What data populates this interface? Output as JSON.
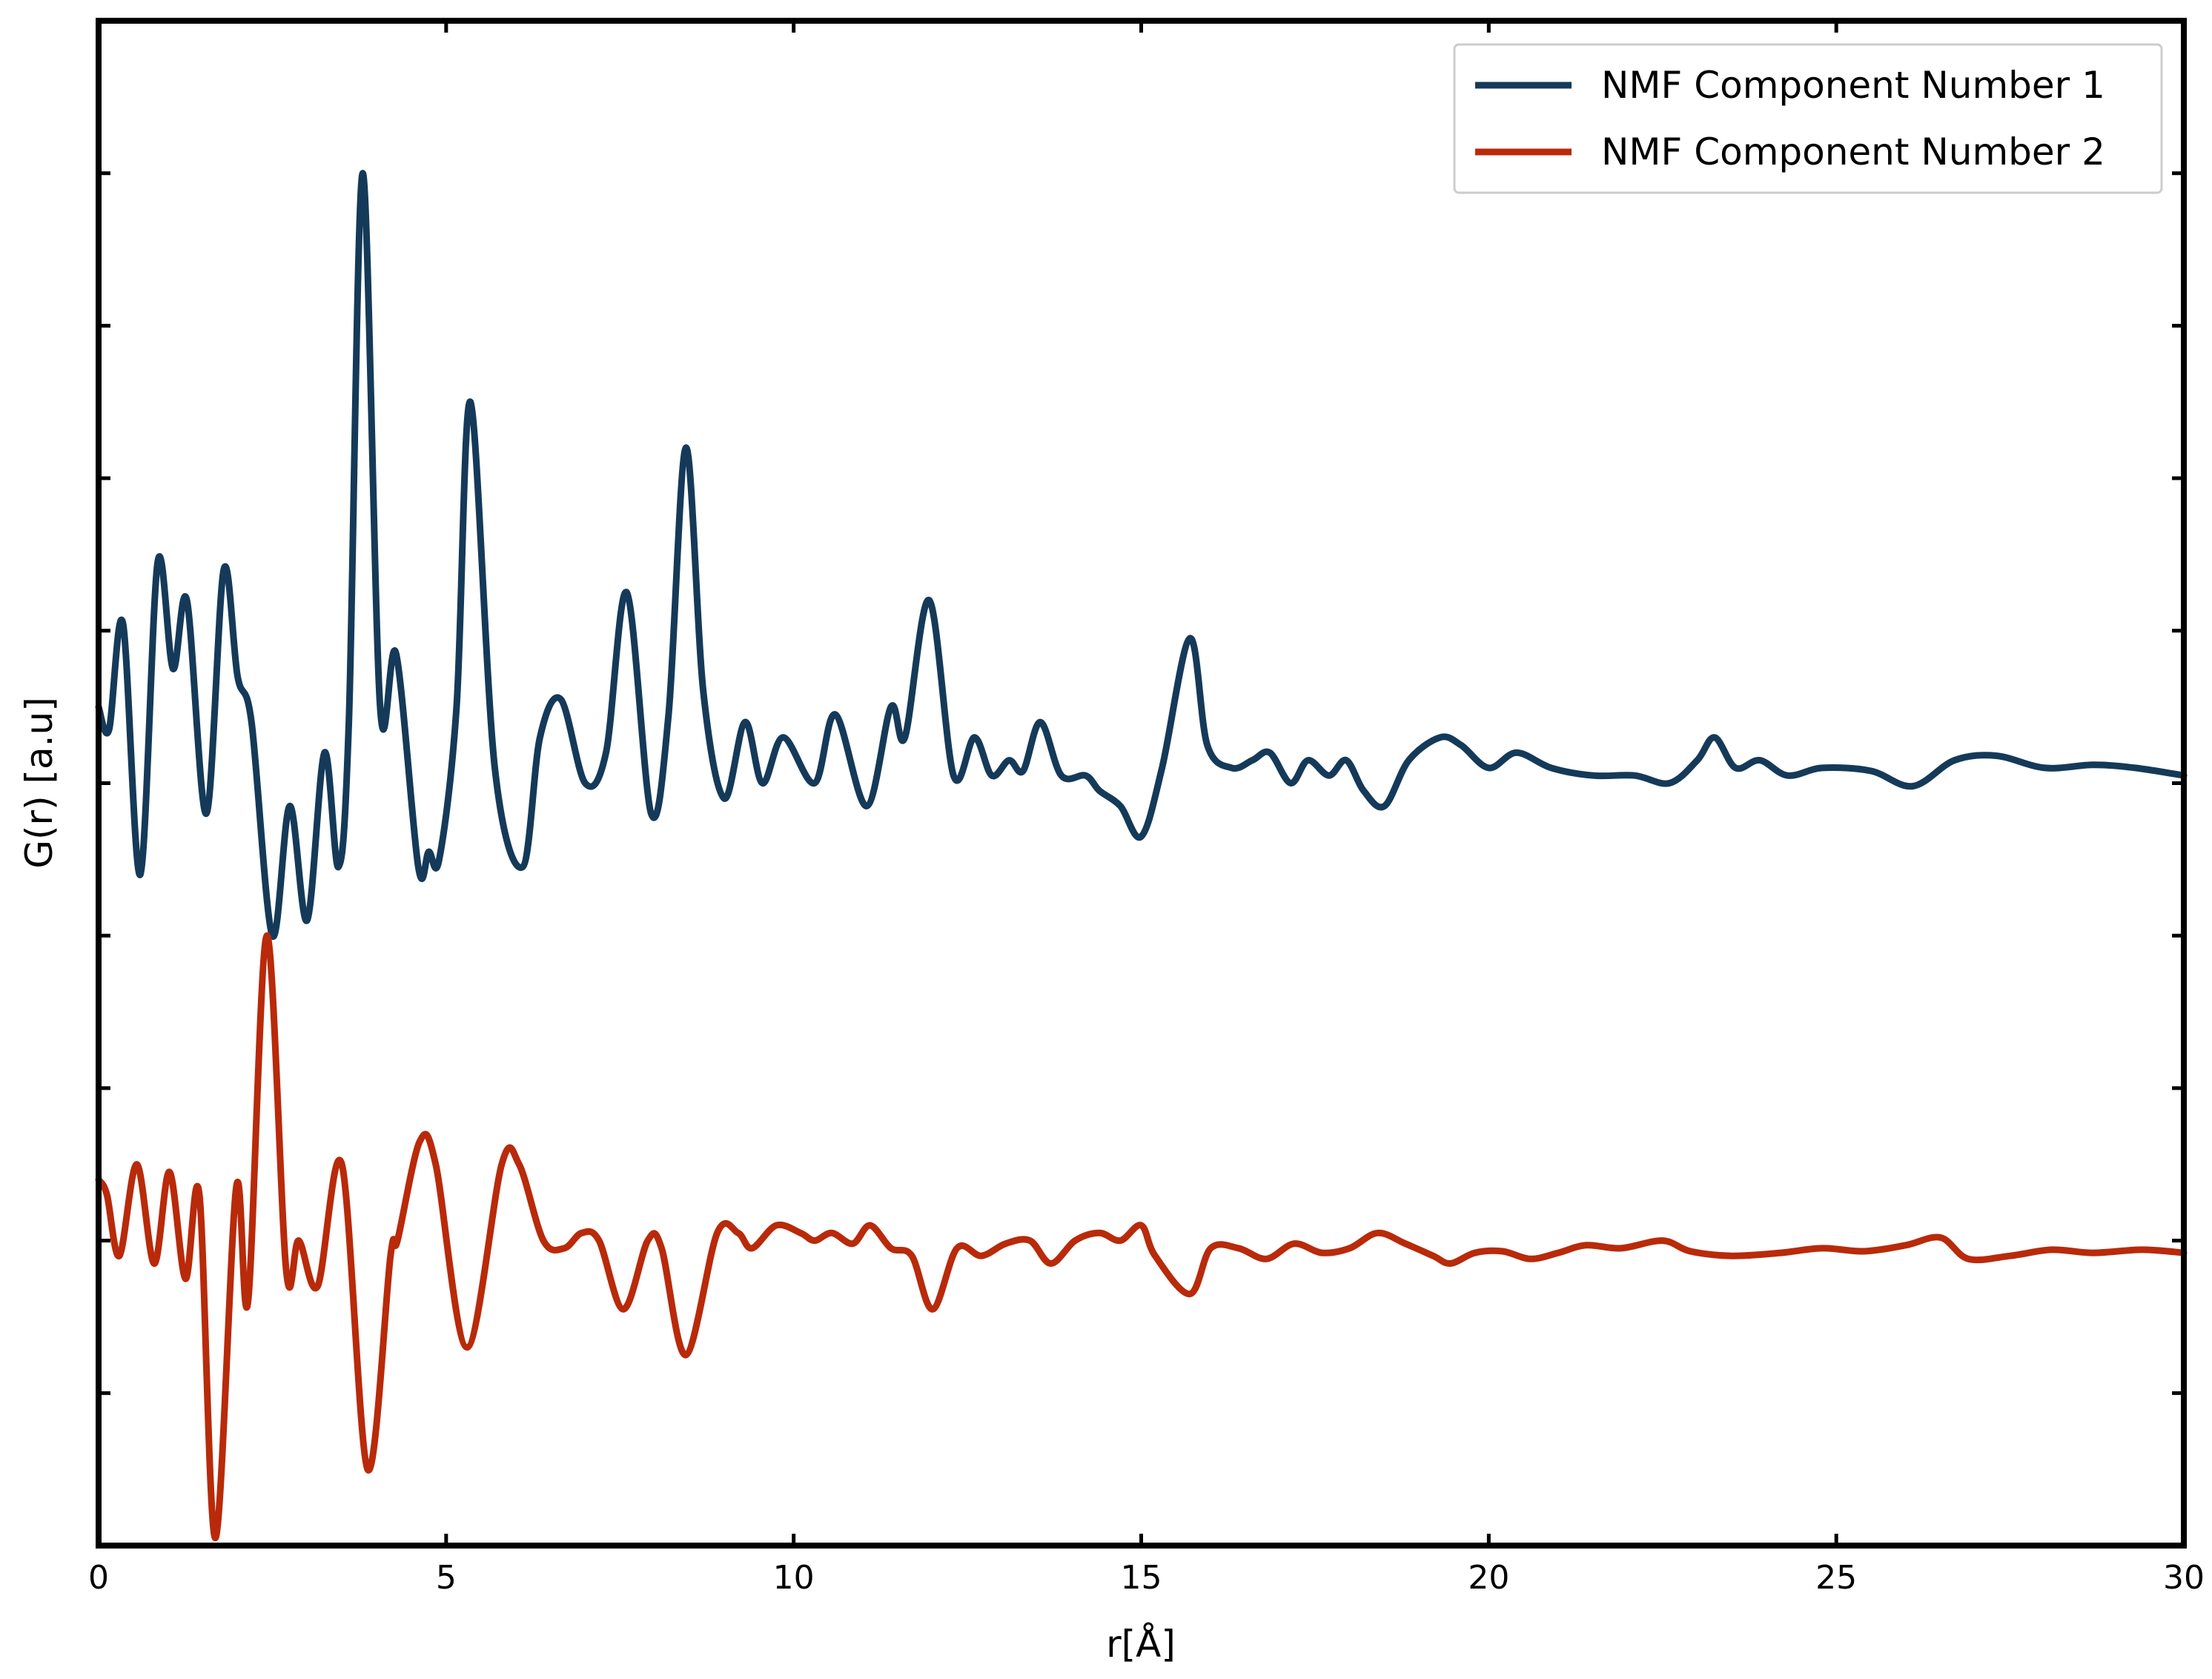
{
  "chart_data": {
    "type": "line",
    "xlabel": "r[Å]",
    "ylabel": "G(r) [a.u]",
    "xlim": [
      0,
      30
    ],
    "ylim": [
      0,
      10
    ],
    "x_ticks": [
      0,
      5,
      10,
      15,
      20,
      25,
      30
    ],
    "y_ticks": [
      1,
      2,
      3,
      4,
      5,
      6,
      7,
      8,
      9
    ],
    "grid": false,
    "legend_position": "top-right",
    "series": [
      {
        "name": "NMF Component Number 1",
        "color": "#153a59",
        "points": [
          [
            0.0,
            5.5
          ],
          [
            0.15,
            5.35
          ],
          [
            0.35,
            6.05
          ],
          [
            0.6,
            4.4
          ],
          [
            0.85,
            6.45
          ],
          [
            1.07,
            5.75
          ],
          [
            1.27,
            6.2
          ],
          [
            1.55,
            4.8
          ],
          [
            1.8,
            6.4
          ],
          [
            2.0,
            5.7
          ],
          [
            2.2,
            5.4
          ],
          [
            2.5,
            4.0
          ],
          [
            2.75,
            4.85
          ],
          [
            3.0,
            4.1
          ],
          [
            3.25,
            5.2
          ],
          [
            3.45,
            4.45
          ],
          [
            3.6,
            5.4
          ],
          [
            3.8,
            9.0
          ],
          [
            4.05,
            5.5
          ],
          [
            4.28,
            5.85
          ],
          [
            4.6,
            4.45
          ],
          [
            4.75,
            4.55
          ],
          [
            4.9,
            4.5
          ],
          [
            5.15,
            5.5
          ],
          [
            5.35,
            7.5
          ],
          [
            5.7,
            5.1
          ],
          [
            6.1,
            4.45
          ],
          [
            6.35,
            5.3
          ],
          [
            6.65,
            5.55
          ],
          [
            7.0,
            5.0
          ],
          [
            7.3,
            5.2
          ],
          [
            7.6,
            6.25
          ],
          [
            7.95,
            4.8
          ],
          [
            8.2,
            5.45
          ],
          [
            8.45,
            7.2
          ],
          [
            8.7,
            5.6
          ],
          [
            9.0,
            4.9
          ],
          [
            9.3,
            5.4
          ],
          [
            9.55,
            5.0
          ],
          [
            9.85,
            5.3
          ],
          [
            10.3,
            5.0
          ],
          [
            10.6,
            5.45
          ],
          [
            11.05,
            4.85
          ],
          [
            11.4,
            5.5
          ],
          [
            11.6,
            5.3
          ],
          [
            11.95,
            6.2
          ],
          [
            12.3,
            5.05
          ],
          [
            12.6,
            5.3
          ],
          [
            12.85,
            5.05
          ],
          [
            13.1,
            5.15
          ],
          [
            13.3,
            5.08
          ],
          [
            13.55,
            5.4
          ],
          [
            13.85,
            5.05
          ],
          [
            14.2,
            5.05
          ],
          [
            14.4,
            4.95
          ],
          [
            14.7,
            4.85
          ],
          [
            15.0,
            4.65
          ],
          [
            15.3,
            5.1
          ],
          [
            15.7,
            5.95
          ],
          [
            15.95,
            5.25
          ],
          [
            16.3,
            5.1
          ],
          [
            16.6,
            5.15
          ],
          [
            16.85,
            5.2
          ],
          [
            17.15,
            5.0
          ],
          [
            17.4,
            5.15
          ],
          [
            17.7,
            5.05
          ],
          [
            17.95,
            5.15
          ],
          [
            18.2,
            4.95
          ],
          [
            18.5,
            4.85
          ],
          [
            18.85,
            5.15
          ],
          [
            19.3,
            5.3
          ],
          [
            19.6,
            5.25
          ],
          [
            20.0,
            5.1
          ],
          [
            20.4,
            5.2
          ],
          [
            20.9,
            5.1
          ],
          [
            21.5,
            5.05
          ],
          [
            22.1,
            5.05
          ],
          [
            22.6,
            5.0
          ],
          [
            23.0,
            5.15
          ],
          [
            23.25,
            5.3
          ],
          [
            23.55,
            5.1
          ],
          [
            23.9,
            5.15
          ],
          [
            24.3,
            5.05
          ],
          [
            24.8,
            5.1
          ],
          [
            25.5,
            5.08
          ],
          [
            26.1,
            4.98
          ],
          [
            26.7,
            5.15
          ],
          [
            27.3,
            5.18
          ],
          [
            28.0,
            5.1
          ],
          [
            28.7,
            5.12
          ],
          [
            29.3,
            5.1
          ],
          [
            30.0,
            5.05
          ]
        ]
      },
      {
        "name": "NMF Component Number 2",
        "color": "#b82a0a",
        "points": [
          [
            0.0,
            2.4
          ],
          [
            0.12,
            2.3
          ],
          [
            0.3,
            1.9
          ],
          [
            0.55,
            2.5
          ],
          [
            0.8,
            1.85
          ],
          [
            1.02,
            2.45
          ],
          [
            1.25,
            1.75
          ],
          [
            1.45,
            2.3
          ],
          [
            1.68,
            0.05
          ],
          [
            1.98,
            2.35
          ],
          [
            2.15,
            1.6
          ],
          [
            2.42,
            4.0
          ],
          [
            2.7,
            1.8
          ],
          [
            2.88,
            2.0
          ],
          [
            3.15,
            1.7
          ],
          [
            3.5,
            2.5
          ],
          [
            3.87,
            0.5
          ],
          [
            4.2,
            1.9
          ],
          [
            4.3,
            2.0
          ],
          [
            4.62,
            2.65
          ],
          [
            4.85,
            2.5
          ],
          [
            5.3,
            1.3
          ],
          [
            5.8,
            2.5
          ],
          [
            6.05,
            2.5
          ],
          [
            6.4,
            2.0
          ],
          [
            6.7,
            1.95
          ],
          [
            6.95,
            2.05
          ],
          [
            7.2,
            2.0
          ],
          [
            7.55,
            1.55
          ],
          [
            7.9,
            2.0
          ],
          [
            8.1,
            1.95
          ],
          [
            8.45,
            1.25
          ],
          [
            8.9,
            2.05
          ],
          [
            9.2,
            2.05
          ],
          [
            9.4,
            1.95
          ],
          [
            9.75,
            2.1
          ],
          [
            10.1,
            2.05
          ],
          [
            10.3,
            2.0
          ],
          [
            10.55,
            2.05
          ],
          [
            10.85,
            1.98
          ],
          [
            11.1,
            2.1
          ],
          [
            11.4,
            1.95
          ],
          [
            11.7,
            1.9
          ],
          [
            12.0,
            1.55
          ],
          [
            12.35,
            1.95
          ],
          [
            12.7,
            1.9
          ],
          [
            13.05,
            1.98
          ],
          [
            13.4,
            2.0
          ],
          [
            13.7,
            1.85
          ],
          [
            14.05,
            2.0
          ],
          [
            14.4,
            2.05
          ],
          [
            14.7,
            2.0
          ],
          [
            15.0,
            2.1
          ],
          [
            15.2,
            1.9
          ],
          [
            15.7,
            1.65
          ],
          [
            16.0,
            1.95
          ],
          [
            16.4,
            1.95
          ],
          [
            16.8,
            1.88
          ],
          [
            17.2,
            1.98
          ],
          [
            17.6,
            1.92
          ],
          [
            18.0,
            1.95
          ],
          [
            18.4,
            2.05
          ],
          [
            18.8,
            1.98
          ],
          [
            19.2,
            1.9
          ],
          [
            19.45,
            1.85
          ],
          [
            19.8,
            1.92
          ],
          [
            20.2,
            1.93
          ],
          [
            20.6,
            1.88
          ],
          [
            21.0,
            1.92
          ],
          [
            21.4,
            1.97
          ],
          [
            21.9,
            1.95
          ],
          [
            22.5,
            2.0
          ],
          [
            22.9,
            1.93
          ],
          [
            23.5,
            1.9
          ],
          [
            24.2,
            1.92
          ],
          [
            24.8,
            1.95
          ],
          [
            25.4,
            1.93
          ],
          [
            26.0,
            1.97
          ],
          [
            26.5,
            2.02
          ],
          [
            26.9,
            1.88
          ],
          [
            27.5,
            1.9
          ],
          [
            28.1,
            1.94
          ],
          [
            28.7,
            1.92
          ],
          [
            29.4,
            1.94
          ],
          [
            30.0,
            1.92
          ]
        ]
      }
    ]
  }
}
